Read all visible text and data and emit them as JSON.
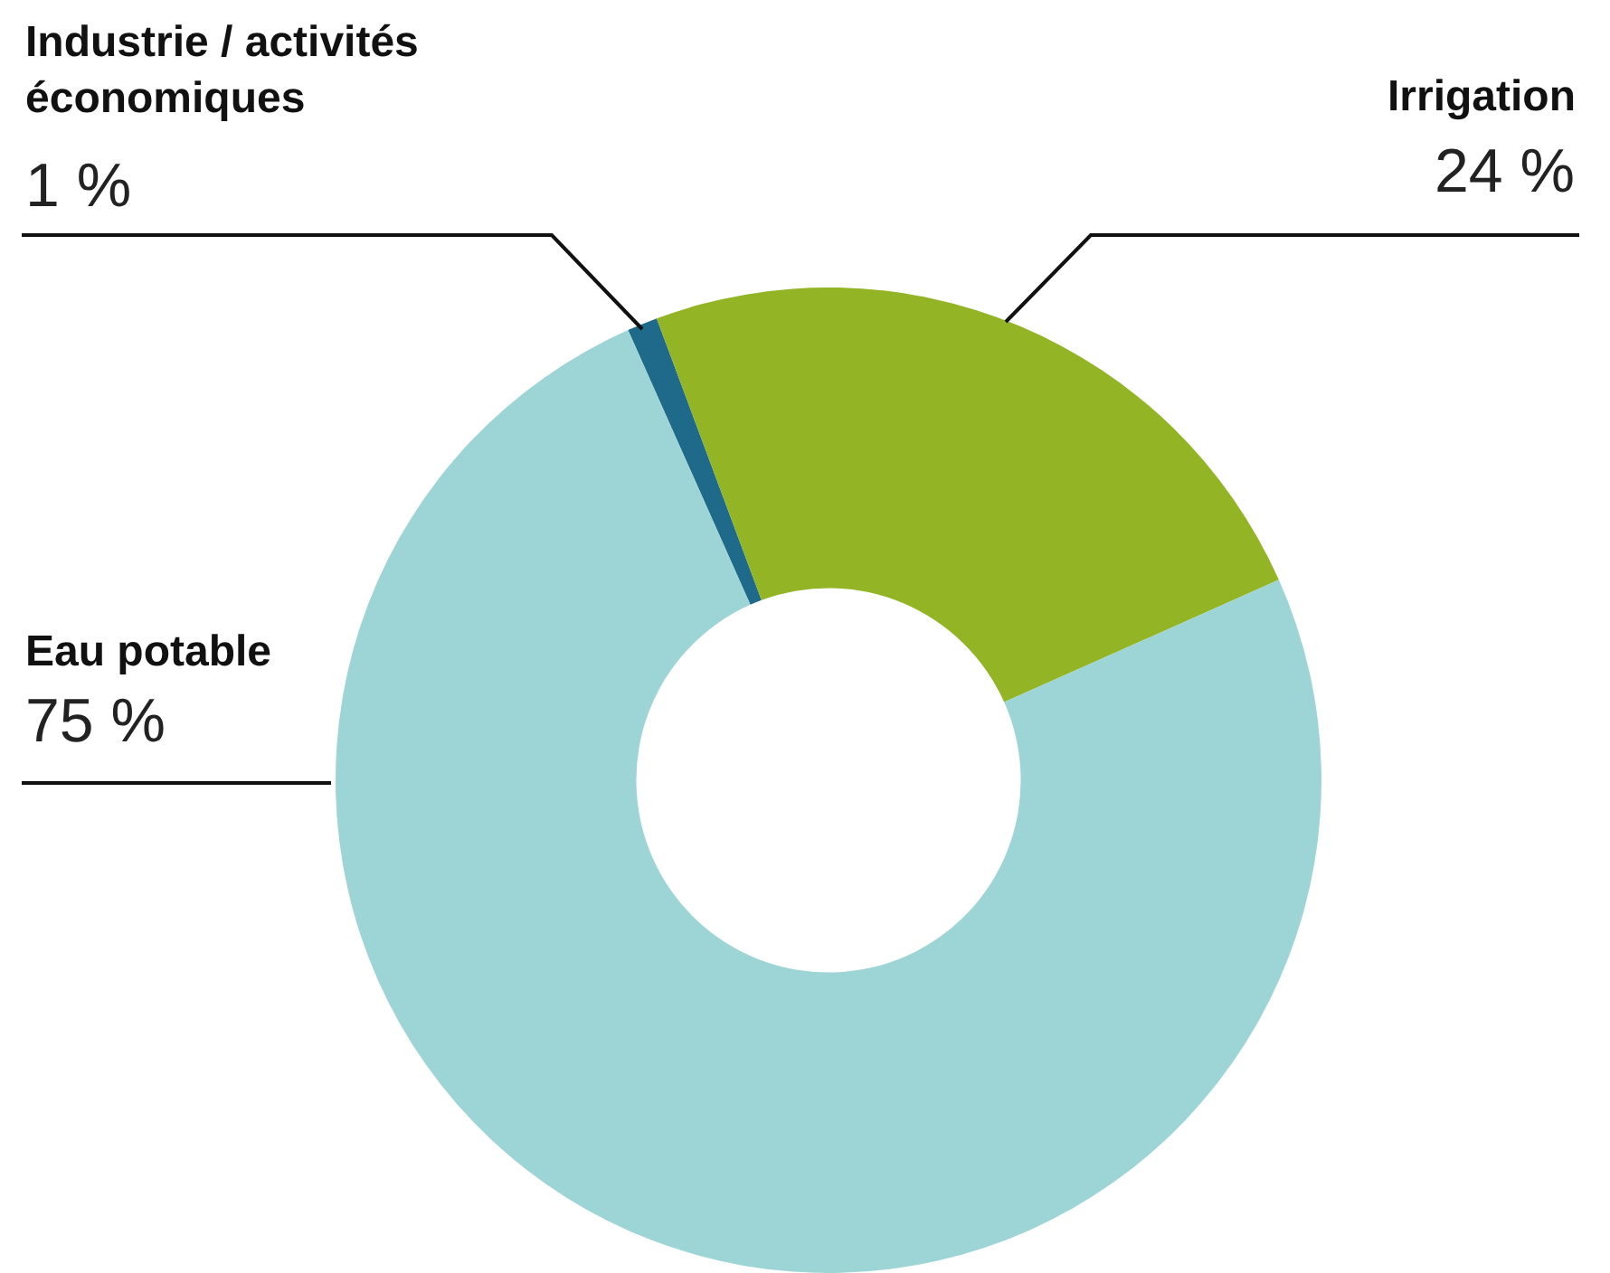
{
  "chart_data": {
    "type": "donut",
    "categories": [
      "Industrie / activités économiques",
      "Irrigation",
      "Eau potable"
    ],
    "values": [
      1,
      24,
      75
    ],
    "value_labels": [
      "1 %",
      "24 %",
      "75 %"
    ],
    "colors": [
      "#1f6a8a",
      "#93b424",
      "#9dd4d6"
    ],
    "legend": false
  }
}
